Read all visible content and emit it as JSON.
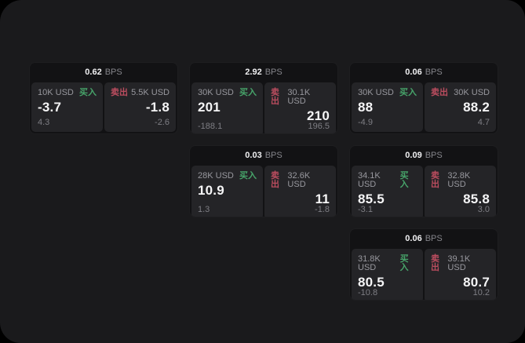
{
  "labels": {
    "buy": "买入",
    "sell": "卖出",
    "bps_unit": "BPS"
  },
  "colors": {
    "buy": "#47a46a",
    "sell": "#bb4d5f",
    "panel": "#1a1a1c",
    "card": "#121214",
    "subcard": "#242427"
  },
  "cards": [
    {
      "bps": "0.62",
      "col": 0,
      "row": 0,
      "buy": {
        "notional": "10K USD",
        "price": "-3.7",
        "delta": "4.3"
      },
      "sell": {
        "notional": "5.5K USD",
        "price": "-1.8",
        "delta": "-2.6"
      }
    },
    {
      "bps": "2.92",
      "col": 1,
      "row": 0,
      "buy": {
        "notional": "30K USD",
        "price": "201",
        "delta": "-188.1"
      },
      "sell": {
        "notional": "30.1K USD",
        "price": "210",
        "delta": "196.5"
      }
    },
    {
      "bps": "0.03",
      "col": 1,
      "row": 1,
      "buy": {
        "notional": "28K USD",
        "price": "10.9",
        "delta": "1.3"
      },
      "sell": {
        "notional": "32.6K USD",
        "price": "11",
        "delta": "-1.8"
      }
    },
    {
      "bps": "0.06",
      "col": 2,
      "row": 0,
      "buy": {
        "notional": "30K USD",
        "price": "88",
        "delta": "-4.9"
      },
      "sell": {
        "notional": "30K USD",
        "price": "88.2",
        "delta": "4.7"
      }
    },
    {
      "bps": "0.09",
      "col": 2,
      "row": 1,
      "buy": {
        "notional": "34.1K USD",
        "price": "85.5",
        "delta": "-3.1"
      },
      "sell": {
        "notional": "32.8K USD",
        "price": "85.8",
        "delta": "3.0"
      }
    },
    {
      "bps": "0.06",
      "col": 2,
      "row": 2,
      "buy": {
        "notional": "31.8K USD",
        "price": "80.5",
        "delta": "-10.8"
      },
      "sell": {
        "notional": "39.1K USD",
        "price": "80.7",
        "delta": "10.2"
      }
    }
  ]
}
